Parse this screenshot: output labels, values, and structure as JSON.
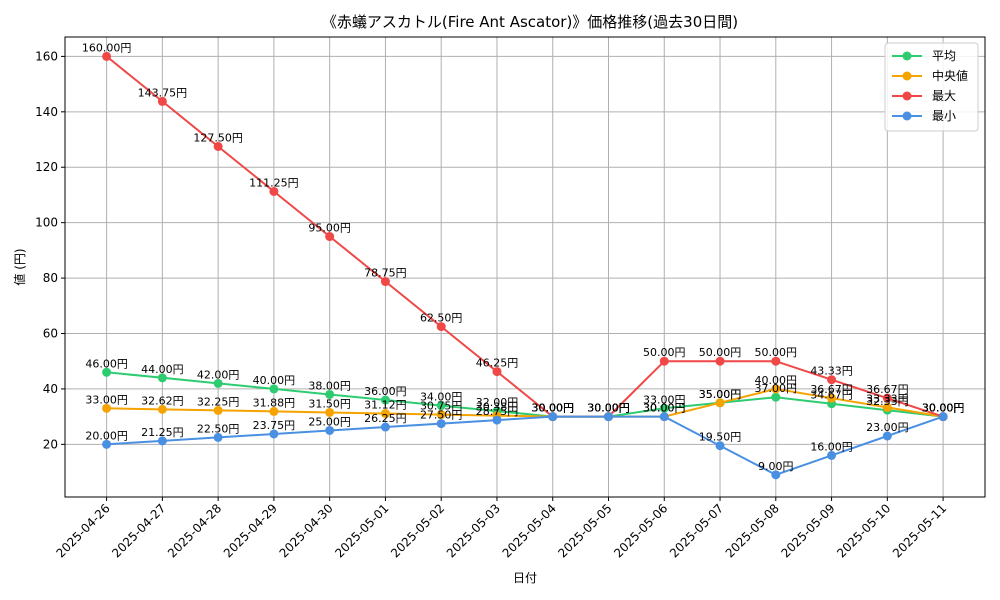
{
  "chart_data": {
    "type": "line",
    "title": "《赤蟻アスカトル(Fire Ant Ascator)》価格推移(過去30日間)",
    "xlabel": "日付",
    "ylabel": "値 (円)",
    "ylim": [
      1,
      167
    ],
    "yticks": [
      20,
      40,
      60,
      80,
      100,
      120,
      140,
      160
    ],
    "grid": true,
    "legend_position": "top-right",
    "label_suffix": "円",
    "categories": [
      "2025-04-26",
      "2025-04-27",
      "2025-04-28",
      "2025-04-29",
      "2025-04-30",
      "2025-05-01",
      "2025-05-02",
      "2025-05-03",
      "2025-05-04",
      "2025-05-05",
      "2025-05-06",
      "2025-05-07",
      "2025-05-08",
      "2025-05-09",
      "2025-05-10",
      "2025-05-11"
    ],
    "series": [
      {
        "name": "平均",
        "color": "#2ecc71",
        "values": [
          46.0,
          44.0,
          42.0,
          40.0,
          38.0,
          36.0,
          34.0,
          32.0,
          30.0,
          30.0,
          33.0,
          35.0,
          37.0,
          34.67,
          32.33,
          30.0
        ]
      },
      {
        "name": "中央値",
        "color": "#f5a300",
        "values": [
          33.0,
          32.62,
          32.25,
          31.88,
          31.5,
          31.12,
          30.75,
          30.38,
          30.0,
          30.0,
          30.0,
          35.0,
          40.0,
          36.67,
          33.33,
          30.0
        ]
      },
      {
        "name": "最大",
        "color": "#f04747",
        "values": [
          160.0,
          143.75,
          127.5,
          111.25,
          95.0,
          78.75,
          62.5,
          46.25,
          30.0,
          30.0,
          50.0,
          50.0,
          50.0,
          43.33,
          36.67,
          30.0
        ]
      },
      {
        "name": "最小",
        "color": "#4a90e2",
        "values": [
          20.0,
          21.25,
          22.5,
          23.75,
          25.0,
          26.25,
          27.5,
          28.75,
          30.0,
          30.0,
          30.0,
          19.5,
          9.0,
          16.0,
          23.0,
          30.0
        ]
      }
    ]
  }
}
